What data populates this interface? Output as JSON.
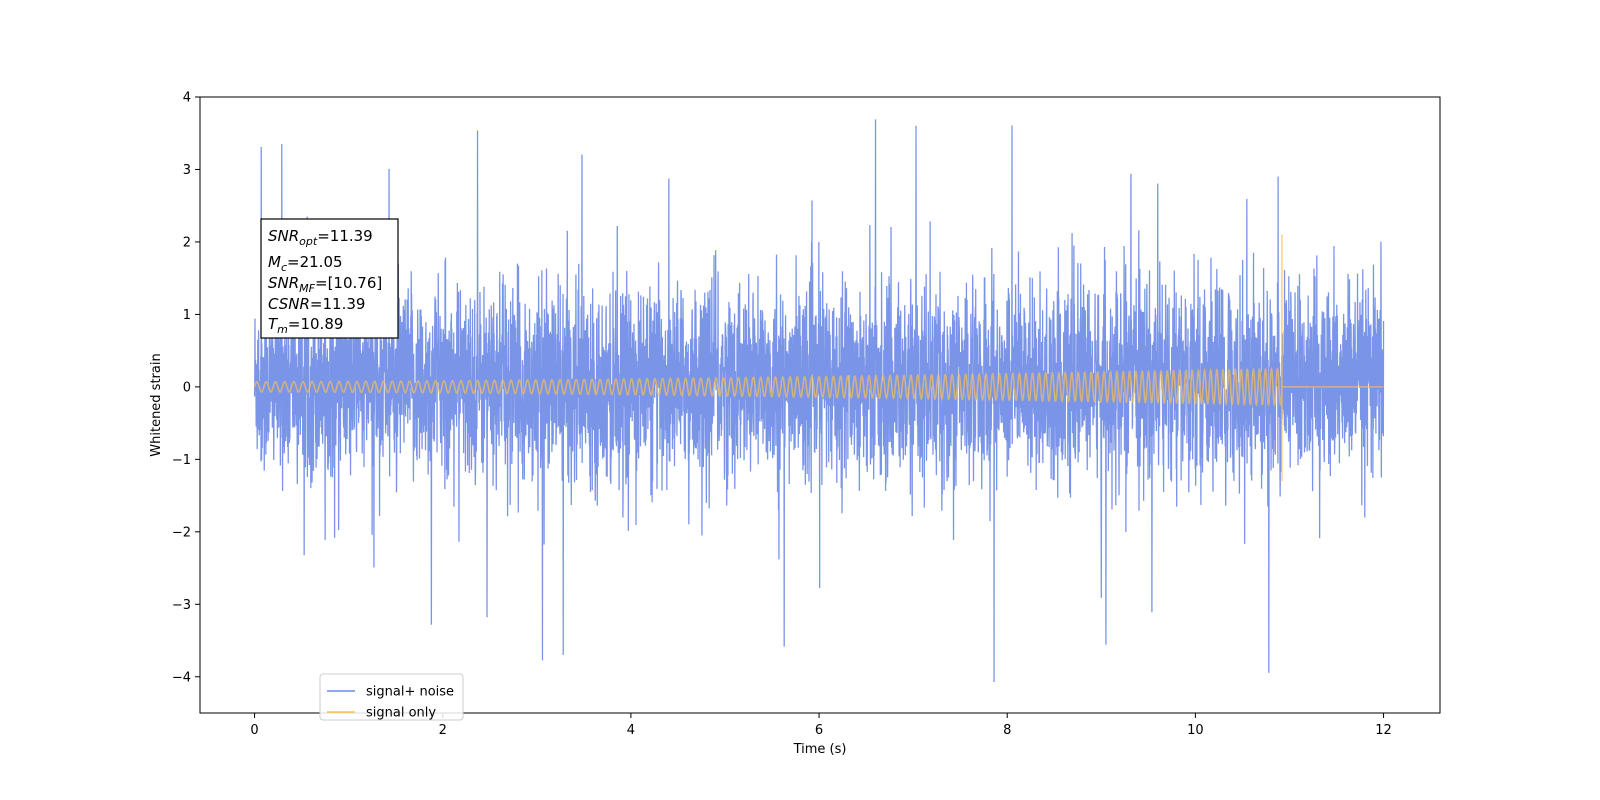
{
  "chart_data": {
    "type": "line",
    "xlabel": "Time (s)",
    "ylabel": "Whitened strain",
    "xlim": [
      -0.58,
      12.6
    ],
    "ylim": [
      -4.5,
      4.0
    ],
    "xticks": [
      0,
      2,
      4,
      6,
      8,
      10,
      12
    ],
    "yticks": [
      -4,
      -3,
      -2,
      -1,
      0,
      1,
      2,
      3,
      4
    ],
    "xtick_labels": [
      "0",
      "2",
      "4",
      "6",
      "8",
      "10",
      "12"
    ],
    "ytick_labels": [
      "−4",
      "−3",
      "−2",
      "−1",
      "0",
      "1",
      "2",
      "3",
      "4"
    ],
    "grid": false,
    "legend_position": "lower-left",
    "series": [
      {
        "name": "signal+ noise",
        "color": "#6f8ce6",
        "x_range": [
          0,
          12
        ],
        "description_values": {
          "typical_amplitude": [
            -1.5,
            1.8
          ],
          "max": 3.61,
          "min": -4.12
        },
        "peaks": [
          [
            0.07,
            3.38
          ],
          [
            0.29,
            3.38
          ],
          [
            1.43,
            3.06
          ],
          [
            2.37,
            3.45
          ],
          [
            3.48,
            3.22
          ],
          [
            6.6,
            3.55
          ],
          [
            7.03,
            3.61
          ],
          [
            8.05,
            3.46
          ],
          [
            9.6,
            3.02
          ],
          [
            10.88,
            2.71
          ],
          [
            3.06,
            -3.82
          ],
          [
            3.28,
            -3.62
          ],
          [
            5.63,
            -3.63
          ],
          [
            7.86,
            -4.12
          ],
          [
            9.05,
            -3.5
          ],
          [
            10.78,
            -3.72
          ],
          [
            2.47,
            -3.25
          ],
          [
            1.88,
            -3.2
          ]
        ]
      },
      {
        "name": "signal only",
        "color": "#ffc04a",
        "x_range": [
          0,
          12
        ],
        "merger_time": 10.92,
        "start_amplitude": 0.07,
        "end_amplitude": 0.25,
        "spike_max": 2.1,
        "spike_min": -1.3
      }
    ]
  },
  "info_box": {
    "lines": [
      {
        "name": "SNR",
        "sub": "opt",
        "value": "=11.39"
      },
      {
        "name": "M",
        "sub": "c",
        "value": "=21.05"
      },
      {
        "name": "SNR",
        "sub": "MF",
        "value": "=[10.76]"
      },
      {
        "name": "CSNR",
        "sub": "",
        "value": "=11.39"
      },
      {
        "name": "T",
        "sub": "m",
        "value": "=10.89"
      }
    ]
  },
  "legend": {
    "items": [
      {
        "label": "signal+ noise",
        "color": "#6f8ce6"
      },
      {
        "label": "signal only",
        "color": "#ffc04a"
      }
    ]
  }
}
